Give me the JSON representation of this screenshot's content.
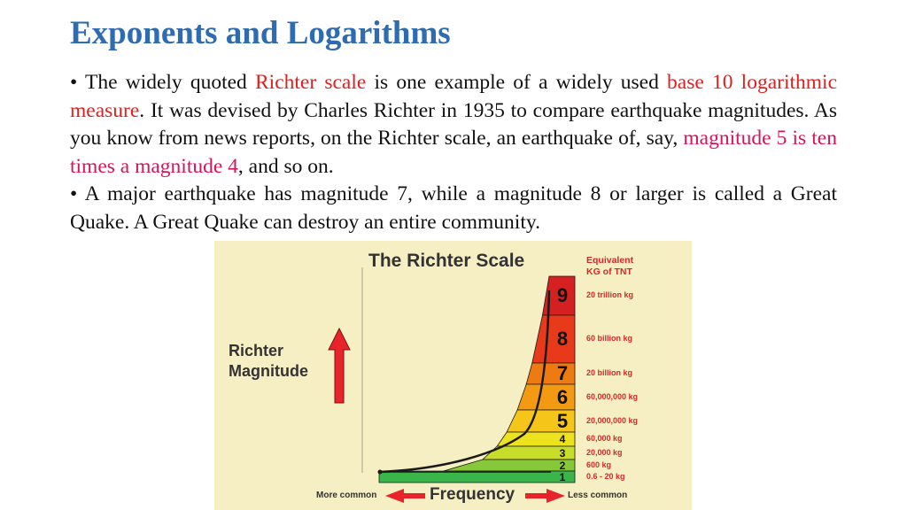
{
  "title": "Exponents and Logarithms",
  "paragraph1": {
    "bullet": "• The widely quoted ",
    "richter_scale": "Richter scale",
    "t1": " is one example of a widely used ",
    "base10": "base 10 logarithmic measure",
    "t2": ". It was devised by Charles Richter in 1935 to compare earthquake magnitudes. As you know from news reports, on the Richter scale, an earthquake of, say, ",
    "magnitude_phrase": "magnitude 5 is ten times a magnitude 4",
    "t3": ", and so on."
  },
  "paragraph2": "• A major earthquake has magnitude 7, while a magnitude 8 or larger is called a Great Quake. A Great Quake can destroy an entire community.",
  "figure": {
    "title": "The Richter Scale",
    "tnt_header_line1": "Equivalent",
    "tnt_header_line2": "KG of TNT",
    "ylabel_line1": "Richter",
    "ylabel_line2": "Magnitude",
    "xlabel": "Frequency",
    "more_common": "More common",
    "less_common": "Less common",
    "levels": [
      {
        "mag": "9",
        "tnt": "20 trillion kg",
        "color": "#d42020"
      },
      {
        "mag": "8",
        "tnt": "60 billion kg",
        "color": "#e83a1a"
      },
      {
        "mag": "7",
        "tnt": "20 billion kg",
        "color": "#ee7a12"
      },
      {
        "mag": "6",
        "tnt": "60,000,000 kg",
        "color": "#f39a12"
      },
      {
        "mag": "5",
        "tnt": "20,000,000 kg",
        "color": "#f6c51a"
      },
      {
        "mag": "4",
        "tnt": "60,000 kg",
        "color": "#eee21e"
      },
      {
        "mag": "3",
        "tnt": "20,000 kg",
        "color": "#c8dc2a"
      },
      {
        "mag": "2",
        "tnt": "600 kg",
        "color": "#86c83a"
      },
      {
        "mag": "1",
        "tnt": "0.6 - 20 kg",
        "color": "#39b54a"
      }
    ],
    "arrow_color": "#e8242a"
  }
}
